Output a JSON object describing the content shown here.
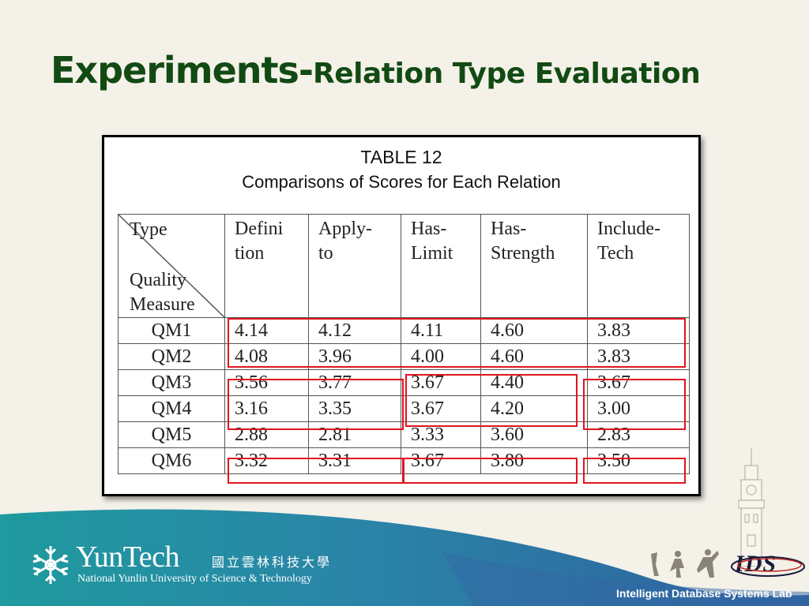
{
  "slide": {
    "title_main": "Experiments-",
    "title_sub": "Relation Type Evaluation"
  },
  "table_image": {
    "caption_line1": "TABLE 12",
    "caption_line2": "Comparisons of Scores for Each Relation",
    "corner_top": "Type",
    "corner_bottom_1": "Quality",
    "corner_bottom_2": "Measure",
    "columns": [
      {
        "line1": "Defini",
        "line2": "tion"
      },
      {
        "line1": "Apply-",
        "line2": "to"
      },
      {
        "line1": "Has-",
        "line2": "Limit"
      },
      {
        "line1": "Has-",
        "line2": "Strength"
      },
      {
        "line1": "Include-",
        "line2": "Tech"
      }
    ],
    "rows": [
      {
        "label": "QM1",
        "values": [
          "4.14",
          "4.12",
          "4.11",
          "4.60",
          "3.83"
        ]
      },
      {
        "label": "QM2",
        "values": [
          "4.08",
          "3.96",
          "4.00",
          "4.60",
          "3.83"
        ]
      },
      {
        "label": "QM3",
        "values": [
          "3.56",
          "3.77",
          "3.67",
          "4.40",
          "3.67"
        ]
      },
      {
        "label": "QM4",
        "values": [
          "3.16",
          "3.35",
          "3.67",
          "4.20",
          "3.00"
        ]
      },
      {
        "label": "QM5",
        "values": [
          "2.88",
          "2.81",
          "3.33",
          "3.60",
          "2.83"
        ]
      },
      {
        "label": "QM6",
        "values": [
          "3.32",
          "3.31",
          "3.67",
          "3.80",
          "3.50"
        ]
      }
    ],
    "highlight_color": "#e0141e"
  },
  "footer": {
    "logo_name": "YunTech",
    "logo_chinese": "國立雲林科技大學",
    "logo_english": "National Yunlin University of Science & Technology",
    "lab_name": "Intelligent Database Systems Lab",
    "ids_logo": "IDS",
    "colors": {
      "teal": "#1f8f9a",
      "blue": "#2c5a9a",
      "title_green": "#124a13"
    }
  }
}
